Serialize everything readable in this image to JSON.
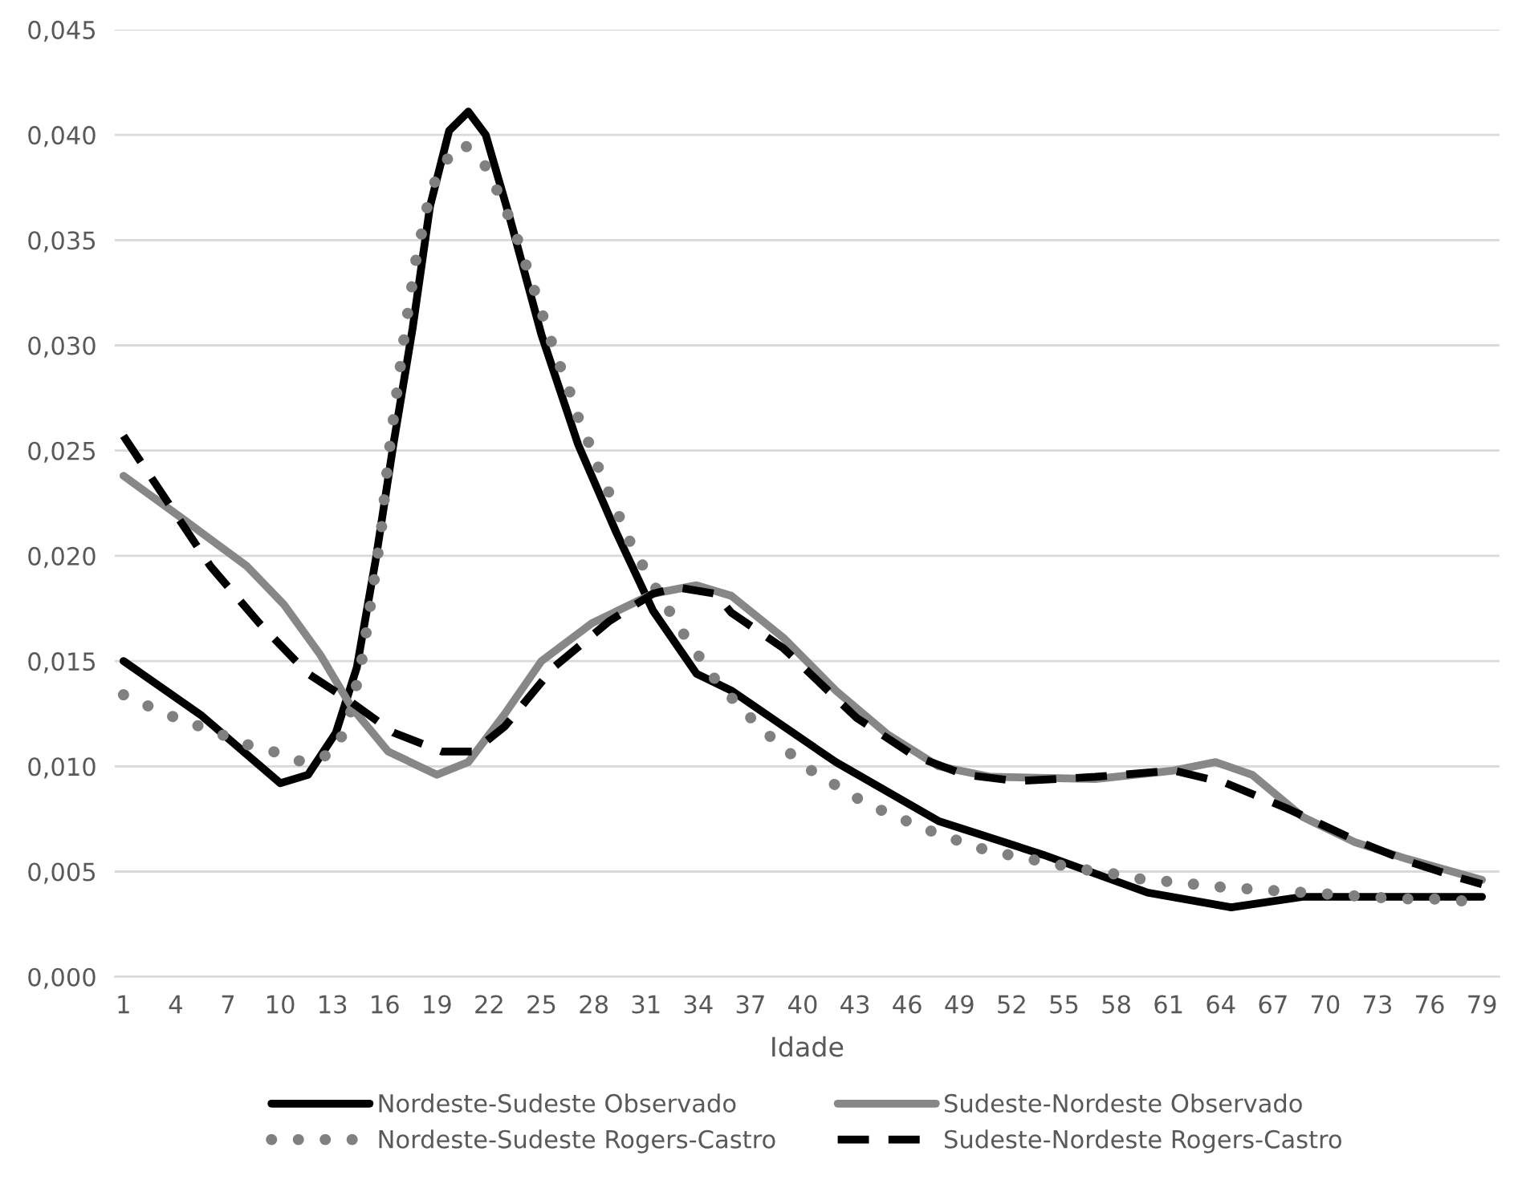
{
  "chart_data": {
    "type": "line",
    "xlabel": "Idade",
    "xlim": [
      0.5,
      80
    ],
    "xticks": [
      1,
      4,
      7,
      10,
      13,
      16,
      19,
      22,
      25,
      28,
      31,
      34,
      37,
      40,
      43,
      46,
      49,
      52,
      55,
      58,
      61,
      64,
      67,
      70,
      73,
      76,
      79
    ],
    "ylim": [
      0,
      0.045
    ],
    "yticks": [
      {
        "value": 0,
        "label": "0,000"
      },
      {
        "value": 0.005,
        "label": "0,005"
      },
      {
        "value": 0.01,
        "label": "0,010"
      },
      {
        "value": 0.015,
        "label": "0,015"
      },
      {
        "value": 0.02,
        "label": "0,020"
      },
      {
        "value": 0.025,
        "label": "0,025"
      },
      {
        "value": 0.03,
        "label": "0,030"
      },
      {
        "value": 0.035,
        "label": "0,035"
      },
      {
        "value": 0.04,
        "label": "0,040"
      },
      {
        "value": 0.045,
        "label": "0,045"
      }
    ],
    "grid": "y",
    "legend": "bottom",
    "marker": "none",
    "series": [
      {
        "name": "Nordeste-Sudeste Observado",
        "color": "#000000",
        "line_style": "solid",
        "x": [
          1,
          5.5,
          10,
          11.6,
          13.2,
          14.4,
          15.5,
          16.5,
          17.6,
          18.6,
          19.7,
          20.8,
          21.8,
          23.2,
          25,
          27.1,
          29.3,
          31.4,
          33.9,
          35.9,
          41.9,
          47.8,
          53.8,
          59.8,
          64.6,
          68.7,
          73.2,
          79
        ],
        "values": [
          0.015,
          0.0124,
          0.0092,
          0.0096,
          0.0116,
          0.0147,
          0.0199,
          0.0253,
          0.0308,
          0.0366,
          0.0402,
          0.0411,
          0.04,
          0.036,
          0.0305,
          0.0253,
          0.0211,
          0.0174,
          0.0144,
          0.0136,
          0.0102,
          0.0074,
          0.0058,
          0.004,
          0.0033,
          0.0038,
          0.0038,
          0.0038
        ]
      },
      {
        "name": "Nordeste-Sudeste Rogers-Castro",
        "color": "#808080",
        "line_style": "dotted",
        "x": [
          1,
          2.6,
          4.3,
          6.1,
          7.8,
          9.6,
          11.3,
          13,
          13.9,
          14.7,
          15.3,
          15.8,
          16.2,
          16.7,
          17.2,
          17.8,
          18.6,
          19.3,
          20.5,
          21.8,
          22.6,
          23.4,
          24,
          24.6,
          25.2,
          25.8,
          26.5,
          27.1,
          27.8,
          28.5,
          29.3,
          30,
          30.9,
          31.9,
          32.9,
          33.9,
          35,
          36.2,
          37.6,
          39,
          40.5,
          42.1,
          43.7,
          45.4,
          47.1,
          48.8,
          50.6,
          52.4,
          54.2,
          56.1,
          57.8,
          59.7,
          61.5,
          63.4,
          65.2,
          67,
          68.9,
          70.7,
          72.5,
          74.4,
          76.2,
          78
        ],
        "values": [
          0.0134,
          0.0128,
          0.0122,
          0.0117,
          0.0111,
          0.0107,
          0.0102,
          0.0106,
          0.012,
          0.0151,
          0.0183,
          0.0212,
          0.0246,
          0.0278,
          0.0309,
          0.0341,
          0.0372,
          0.0386,
          0.0396,
          0.0385,
          0.0371,
          0.0356,
          0.0341,
          0.0326,
          0.0311,
          0.0296,
          0.0281,
          0.0266,
          0.0252,
          0.0237,
          0.0222,
          0.0208,
          0.0194,
          0.018,
          0.0166,
          0.0154,
          0.0141,
          0.013,
          0.0118,
          0.0108,
          0.0098,
          0.009,
          0.0082,
          0.0076,
          0.007,
          0.0065,
          0.006,
          0.0057,
          0.0054,
          0.0051,
          0.0049,
          0.0046,
          0.0045,
          0.0043,
          0.0042,
          0.0041,
          0.004,
          0.0039,
          0.0038,
          0.0037,
          0.0037,
          0.0036
        ]
      },
      {
        "name": "Sudeste-Nordeste Observado",
        "color": "#878787",
        "line_style": "solid",
        "x": [
          1,
          4.5,
          8.1,
          10.2,
          12.3,
          14.1,
          16.2,
          19,
          20.8,
          22.9,
          25,
          27.9,
          31.4,
          33.9,
          35.9,
          38.9,
          41.9,
          44.9,
          47.8,
          50.8,
          56.8,
          61.3,
          63.7,
          65.8,
          68.7,
          71.7,
          74.7,
          79
        ],
        "values": [
          0.0238,
          0.0217,
          0.0195,
          0.0177,
          0.0153,
          0.0128,
          0.0107,
          0.0096,
          0.0102,
          0.0125,
          0.015,
          0.0168,
          0.0182,
          0.0186,
          0.0181,
          0.0161,
          0.0136,
          0.0115,
          0.01,
          0.0095,
          0.0094,
          0.0098,
          0.0102,
          0.0096,
          0.0076,
          0.0064,
          0.0056,
          0.0046
        ]
      },
      {
        "name": "Sudeste-Nordeste Rogers-Castro",
        "color": "#000000",
        "line_style": "dashed",
        "x": [
          1,
          3.5,
          6,
          8.8,
          11.6,
          14,
          16.5,
          19.3,
          21.1,
          22.9,
          25.7,
          28.9,
          31.4,
          32.8,
          35,
          35.9,
          38.9,
          43.1,
          46.4,
          49.3,
          52.3,
          56.8,
          61.3,
          64.3,
          67.8,
          71.7,
          74.7,
          77.7,
          79
        ],
        "values": [
          0.0257,
          0.0226,
          0.0195,
          0.0168,
          0.0144,
          0.0131,
          0.0116,
          0.0107,
          0.0107,
          0.0119,
          0.0147,
          0.0169,
          0.0182,
          0.0185,
          0.0182,
          0.0173,
          0.0156,
          0.0123,
          0.0105,
          0.0096,
          0.0093,
          0.0095,
          0.0098,
          0.0092,
          0.008,
          0.0065,
          0.0055,
          0.0047,
          0.0044
        ]
      }
    ]
  }
}
